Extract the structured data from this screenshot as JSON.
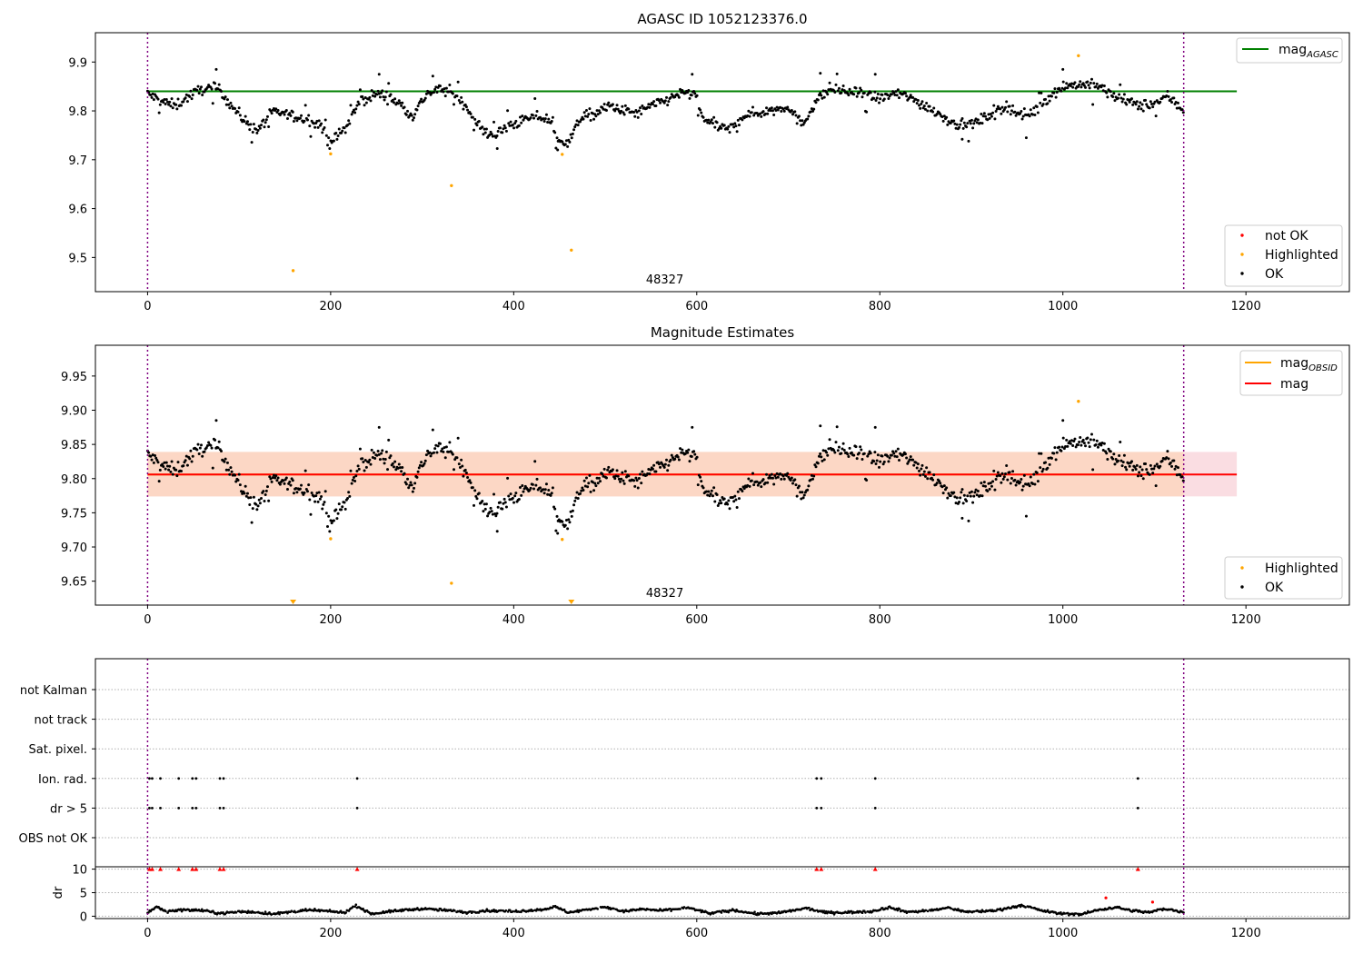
{
  "chart_data": [
    {
      "type": "scatter",
      "title": "AGASC ID 1052123376.0",
      "xlim": [
        -57,
        1313
      ],
      "ylim": [
        9.43,
        9.96
      ],
      "xticks": [
        0,
        200,
        400,
        600,
        800,
        1000,
        1200
      ],
      "yticks": [
        9.5,
        9.6,
        9.7,
        9.8,
        9.9
      ],
      "annotation": {
        "text": "48327",
        "x": 565
      },
      "vlines": [
        0,
        1132
      ],
      "hline": {
        "name": "mag",
        "sub": "AGASC",
        "y": 9.84,
        "x_range": [
          0,
          1190
        ],
        "color": "#008000"
      },
      "series": [
        {
          "name": "not OK",
          "color": "#ff0000",
          "points": []
        },
        {
          "name": "Highlighted",
          "color": "#ffa500",
          "points": [
            [
              159,
              9.473
            ],
            [
              200,
              9.712
            ],
            [
              332,
              9.647
            ],
            [
              453,
              9.711
            ],
            [
              463,
              9.515
            ],
            [
              1017,
              9.913
            ]
          ]
        },
        {
          "name": "OK",
          "color": "#000000",
          "profile": [
            [
              0,
              9.835
            ],
            [
              15,
              9.82
            ],
            [
              30,
              9.81
            ],
            [
              45,
              9.83
            ],
            [
              60,
              9.845
            ],
            [
              78,
              9.845
            ],
            [
              92,
              9.81
            ],
            [
              106,
              9.78
            ],
            [
              120,
              9.76
            ],
            [
              135,
              9.795
            ],
            [
              150,
              9.795
            ],
            [
              165,
              9.785
            ],
            [
              182,
              9.78
            ],
            [
              190,
              9.77
            ],
            [
              197,
              9.735
            ],
            [
              206,
              9.745
            ],
            [
              218,
              9.77
            ],
            [
              232,
              9.82
            ],
            [
              250,
              9.835
            ],
            [
              262,
              9.83
            ],
            [
              275,
              9.815
            ],
            [
              290,
              9.79
            ],
            [
              305,
              9.835
            ],
            [
              320,
              9.845
            ],
            [
              335,
              9.835
            ],
            [
              350,
              9.805
            ],
            [
              365,
              9.76
            ],
            [
              380,
              9.75
            ],
            [
              395,
              9.77
            ],
            [
              410,
              9.78
            ],
            [
              425,
              9.79
            ],
            [
              440,
              9.78
            ],
            [
              448,
              9.735
            ],
            [
              462,
              9.74
            ],
            [
              472,
              9.785
            ],
            [
              490,
              9.795
            ],
            [
              505,
              9.81
            ],
            [
              520,
              9.8
            ],
            [
              535,
              9.795
            ],
            [
              550,
              9.81
            ],
            [
              565,
              9.82
            ],
            [
              580,
              9.835
            ],
            [
              598,
              9.835
            ],
            [
              605,
              9.79
            ],
            [
              620,
              9.77
            ],
            [
              635,
              9.76
            ],
            [
              650,
              9.79
            ],
            [
              665,
              9.795
            ],
            [
              680,
              9.8
            ],
            [
              700,
              9.81
            ],
            [
              715,
              9.77
            ],
            [
              730,
              9.82
            ],
            [
              745,
              9.845
            ],
            [
              760,
              9.84
            ],
            [
              780,
              9.835
            ],
            [
              800,
              9.825
            ],
            [
              815,
              9.835
            ],
            [
              830,
              9.83
            ],
            [
              845,
              9.815
            ],
            [
              860,
              9.8
            ],
            [
              880,
              9.775
            ],
            [
              895,
              9.77
            ],
            [
              910,
              9.78
            ],
            [
              925,
              9.8
            ],
            [
              940,
              9.81
            ],
            [
              955,
              9.79
            ],
            [
              970,
              9.8
            ],
            [
              985,
              9.83
            ],
            [
              1000,
              9.85
            ],
            [
              1020,
              9.855
            ],
            [
              1040,
              9.85
            ],
            [
              1055,
              9.83
            ],
            [
              1070,
              9.82
            ],
            [
              1085,
              9.81
            ],
            [
              1100,
              9.815
            ],
            [
              1115,
              9.83
            ],
            [
              1132,
              9.8
            ]
          ]
        }
      ]
    },
    {
      "type": "scatter",
      "title": "Magnitude Estimates",
      "xlim": [
        -57,
        1313
      ],
      "ylim": [
        9.615,
        9.995
      ],
      "xticks": [
        0,
        200,
        400,
        600,
        800,
        1000,
        1200
      ],
      "yticks": [
        9.65,
        9.7,
        9.75,
        9.8,
        9.85,
        9.9,
        9.95
      ],
      "annotation": {
        "text": "48327",
        "x": 565
      },
      "vlines": [
        0,
        1132
      ],
      "band_outer": {
        "y_range": [
          9.774,
          9.839
        ],
        "x_range": [
          0,
          1190
        ],
        "color": "#f7c6cf"
      },
      "band_inner": {
        "y_range": [
          9.774,
          9.839
        ],
        "x_range": [
          0,
          1132
        ],
        "color": "#fcd6bf"
      },
      "lines": [
        {
          "name": "mag",
          "sub": "OBSID",
          "color": "#ffa500",
          "y": 9.806,
          "x_range": [
            0,
            1132
          ]
        },
        {
          "name": "mag",
          "sub": "",
          "color": "#ff0000",
          "y": 9.806,
          "x_range": [
            0,
            1190
          ]
        }
      ],
      "series": [
        {
          "name": "Highlighted",
          "color": "#ffa500",
          "points": [
            [
              200,
              9.712
            ],
            [
              332,
              9.647
            ],
            [
              453,
              9.711
            ],
            [
              1017,
              9.913
            ]
          ],
          "offscale_markers": [
            159,
            463
          ]
        },
        {
          "name": "OK",
          "color": "#000000",
          "same_as_panel_1": true
        }
      ]
    },
    {
      "type": "scatter",
      "title": "",
      "categories": [
        "not Kalman",
        "not track",
        "Sat. pixel.",
        "Ion. rad.",
        "dr > 5",
        "OBS not OK"
      ],
      "xlim": [
        -57,
        1313
      ],
      "xticks": [
        0,
        200,
        400,
        600,
        800,
        1000,
        1200
      ],
      "vlines": [
        0,
        1132
      ],
      "flags": {
        "Ion. rad.": [
          2,
          5,
          14,
          34,
          49,
          53,
          79,
          83,
          229,
          731,
          736,
          795,
          1082
        ],
        "dr > 5": [
          2,
          5,
          14,
          34,
          49,
          53,
          79,
          83,
          229,
          731,
          736,
          795,
          1082
        ]
      },
      "dr_subplot": {
        "ylabel": "dr",
        "ylim": [
          -0.5,
          10.5
        ],
        "yticks": [
          0,
          5,
          10
        ],
        "clipped_at_10": [
          2,
          5,
          14,
          34,
          49,
          53,
          79,
          83,
          229,
          731,
          736,
          795,
          1082
        ],
        "red_points": [
          [
            1047,
            3.9
          ],
          [
            1098,
            3.0
          ]
        ],
        "profile": [
          [
            0,
            0.8
          ],
          [
            10,
            2.0
          ],
          [
            20,
            1.0
          ],
          [
            40,
            1.4
          ],
          [
            60,
            1.2
          ],
          [
            80,
            0.6
          ],
          [
            100,
            1.0
          ],
          [
            120,
            0.8
          ],
          [
            140,
            0.5
          ],
          [
            160,
            1.0
          ],
          [
            180,
            1.3
          ],
          [
            200,
            1.0
          ],
          [
            215,
            0.8
          ],
          [
            228,
            2.2
          ],
          [
            245,
            0.5
          ],
          [
            260,
            0.9
          ],
          [
            280,
            1.3
          ],
          [
            300,
            1.6
          ],
          [
            330,
            1.2
          ],
          [
            350,
            0.8
          ],
          [
            370,
            1.2
          ],
          [
            400,
            1.0
          ],
          [
            430,
            1.4
          ],
          [
            445,
            2.0
          ],
          [
            460,
            0.8
          ],
          [
            480,
            1.4
          ],
          [
            500,
            2.0
          ],
          [
            520,
            1.0
          ],
          [
            540,
            1.5
          ],
          [
            560,
            1.2
          ],
          [
            590,
            1.8
          ],
          [
            615,
            0.6
          ],
          [
            640,
            1.3
          ],
          [
            665,
            0.5
          ],
          [
            690,
            0.7
          ],
          [
            720,
            1.7
          ],
          [
            740,
            0.8
          ],
          [
            760,
            0.8
          ],
          [
            790,
            1.0
          ],
          [
            810,
            1.9
          ],
          [
            830,
            0.9
          ],
          [
            855,
            1.2
          ],
          [
            875,
            1.8
          ],
          [
            895,
            0.9
          ],
          [
            925,
            1.2
          ],
          [
            955,
            2.3
          ],
          [
            975,
            1.3
          ],
          [
            995,
            0.6
          ],
          [
            1020,
            0.4
          ],
          [
            1040,
            1.4
          ],
          [
            1058,
            1.9
          ],
          [
            1075,
            1.2
          ],
          [
            1095,
            0.8
          ],
          [
            1110,
            1.6
          ],
          [
            1132,
            0.9
          ]
        ]
      }
    }
  ],
  "legends": {
    "panel1_top": [
      {
        "label": "mag",
        "sub": "AGASC",
        "color": "#008000"
      }
    ],
    "panel1_bottom": [
      {
        "label": "not OK",
        "color": "#ff0000"
      },
      {
        "label": "Highlighted",
        "color": "#ffa500"
      },
      {
        "label": "OK",
        "color": "#000000"
      }
    ],
    "panel2_top": [
      {
        "label": "mag",
        "sub": "OBSID",
        "color": "#ffa500"
      },
      {
        "label": "mag",
        "sub": "",
        "color": "#ff0000"
      }
    ],
    "panel2_bottom": [
      {
        "label": "Highlighted",
        "color": "#ffa500"
      },
      {
        "label": "OK",
        "color": "#000000"
      }
    ]
  }
}
